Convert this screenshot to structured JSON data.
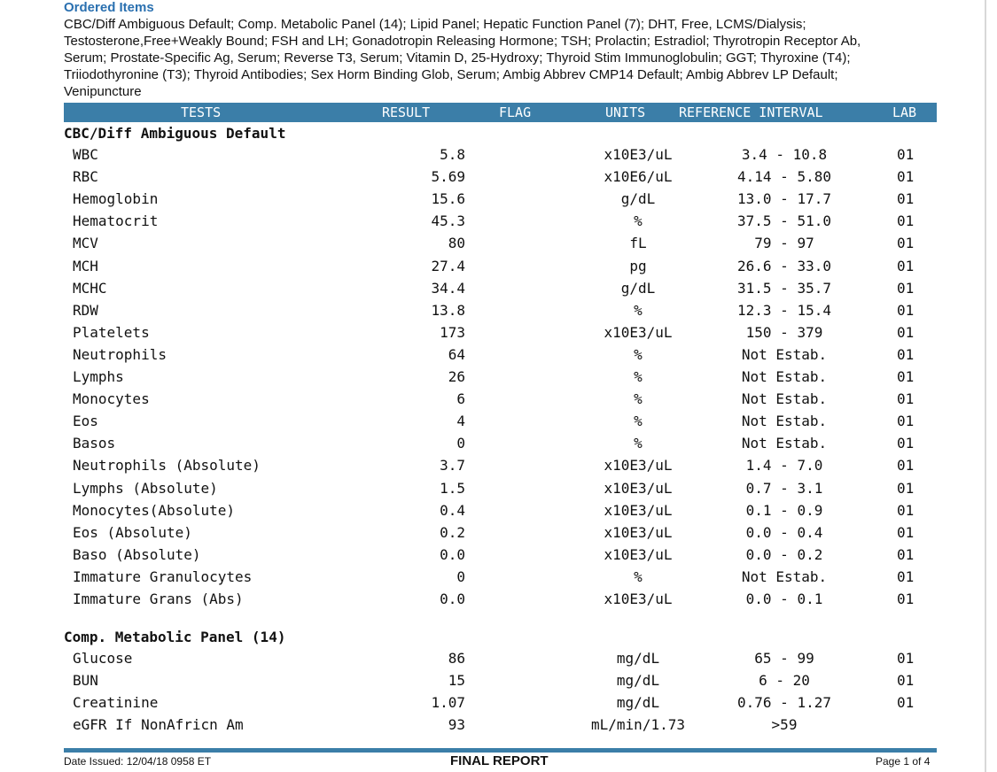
{
  "ordered_items": {
    "title": "Ordered Items",
    "lines": [
      "CBC/Diff Ambiguous Default; Comp. Metabolic Panel (14); Lipid Panel; Hepatic Function Panel (7); DHT, Free, LCMS/Dialysis;",
      "Testosterone,Free+Weakly Bound; FSH and LH; Gonadotropin Releasing Hormone; TSH; Prolactin; Estradiol; Thyrotropin Receptor Ab,",
      "Serum; Prostate-Specific Ag, Serum; Reverse T3, Serum; Vitamin D, 25-Hydroxy; Thyroid Stim Immunoglobulin; GGT; Thyroxine (T4);",
      "Triiodothyronine (T3); Thyroid Antibodies; Sex Horm Binding Glob, Serum; Ambig Abbrev CMP14 Default; Ambig Abbrev LP Default;",
      "Venipuncture"
    ]
  },
  "table_header": {
    "tests": "TESTS",
    "result": "RESULT",
    "flag": "FLAG",
    "units": "UNITS",
    "reference": "REFERENCE INTERVAL",
    "lab": "LAB"
  },
  "sections": [
    {
      "title": "CBC/Diff Ambiguous Default",
      "rows": [
        {
          "test": "WBC",
          "result": "5.8",
          "units": "x10E3/uL",
          "ref": "3.4 - 10.8",
          "lab": "01"
        },
        {
          "test": "RBC",
          "result": "5.69",
          "units": "x10E6/uL",
          "ref": "4.14 - 5.80",
          "lab": "01"
        },
        {
          "test": "Hemoglobin",
          "result": "15.6",
          "units": "g/dL",
          "ref": "13.0 - 17.7",
          "lab": "01"
        },
        {
          "test": "Hematocrit",
          "result": "45.3",
          "units": "%",
          "ref": "37.5 - 51.0",
          "lab": "01"
        },
        {
          "test": "MCV",
          "result": "80",
          "units": "fL",
          "ref": "79 - 97",
          "lab": "01"
        },
        {
          "test": "MCH",
          "result": "27.4",
          "units": "pg",
          "ref": "26.6 - 33.0",
          "lab": "01"
        },
        {
          "test": "MCHC",
          "result": "34.4",
          "units": "g/dL",
          "ref": "31.5 - 35.7",
          "lab": "01"
        },
        {
          "test": "RDW",
          "result": "13.8",
          "units": "%",
          "ref": "12.3 - 15.4",
          "lab": "01"
        },
        {
          "test": "Platelets",
          "result": "173",
          "units": "x10E3/uL",
          "ref": "150 - 379",
          "lab": "01"
        },
        {
          "test": "Neutrophils",
          "result": "64",
          "units": "%",
          "ref": "Not Estab.",
          "lab": "01"
        },
        {
          "test": "Lymphs",
          "result": "26",
          "units": "%",
          "ref": "Not Estab.",
          "lab": "01"
        },
        {
          "test": "Monocytes",
          "result": "6",
          "units": "%",
          "ref": "Not Estab.",
          "lab": "01"
        },
        {
          "test": "Eos",
          "result": "4",
          "units": "%",
          "ref": "Not Estab.",
          "lab": "01"
        },
        {
          "test": "Basos",
          "result": "0",
          "units": "%",
          "ref": "Not Estab.",
          "lab": "01"
        },
        {
          "test": "Neutrophils (Absolute)",
          "result": "3.7",
          "units": "x10E3/uL",
          "ref": "1.4 - 7.0",
          "lab": "01"
        },
        {
          "test": "Lymphs (Absolute)",
          "result": "1.5",
          "units": "x10E3/uL",
          "ref": "0.7 - 3.1",
          "lab": "01"
        },
        {
          "test": "Monocytes(Absolute)",
          "result": "0.4",
          "units": "x10E3/uL",
          "ref": "0.1 - 0.9",
          "lab": "01"
        },
        {
          "test": "Eos (Absolute)",
          "result": "0.2",
          "units": "x10E3/uL",
          "ref": "0.0 - 0.4",
          "lab": "01"
        },
        {
          "test": "Baso (Absolute)",
          "result": "0.0",
          "units": "x10E3/uL",
          "ref": "0.0 - 0.2",
          "lab": "01"
        },
        {
          "test": "Immature Granulocytes",
          "result": "0",
          "units": "%",
          "ref": "Not Estab.",
          "lab": "01"
        },
        {
          "test": "Immature Grans (Abs)",
          "result": "0.0",
          "units": "x10E3/uL",
          "ref": "0.0 - 0.1",
          "lab": "01"
        }
      ]
    },
    {
      "title": "Comp. Metabolic Panel (14)",
      "rows": [
        {
          "test": "Glucose",
          "result": "86",
          "units": "mg/dL",
          "ref": "65 - 99",
          "lab": "01"
        },
        {
          "test": "BUN",
          "result": "15",
          "units": "mg/dL",
          "ref": "6 - 20",
          "lab": "01"
        },
        {
          "test": "Creatinine",
          "result": "1.07",
          "units": "mg/dL",
          "ref": "0.76 - 1.27",
          "lab": "01"
        },
        {
          "test": "eGFR If NonAfricn Am",
          "result": "93",
          "units": "mL/min/1.73",
          "ref": ">59",
          "lab": ""
        }
      ]
    }
  ],
  "footer": {
    "date_issued": "Date Issued: 12/04/18 0958 ET",
    "report_status": "FINAL REPORT",
    "page": "Page 1 of 4"
  }
}
